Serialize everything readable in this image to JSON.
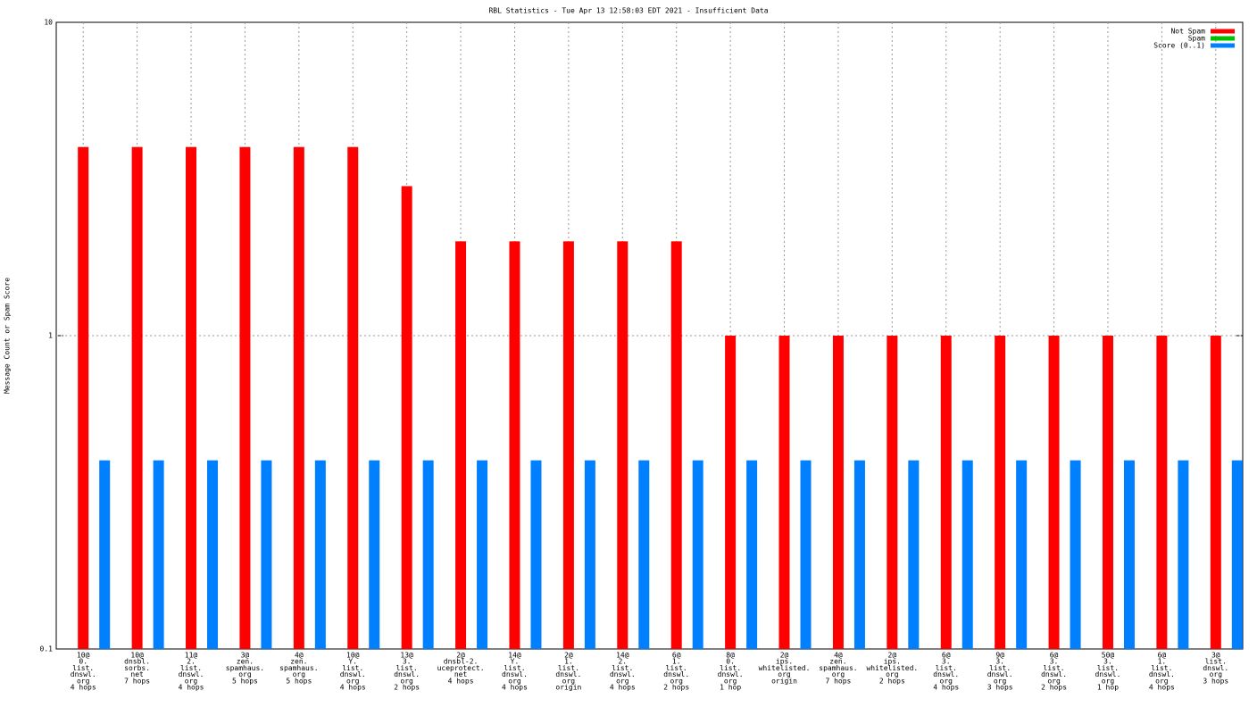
{
  "chart_data": {
    "type": "bar",
    "title": "RBL Statistics - Tue Apr 13 12:58:03 EDT 2021 - Insufficient Data",
    "y_label": "Message Count or Spam Score",
    "log_scale": true,
    "ylim": [
      0.1,
      10
    ],
    "yticks": [
      0.1,
      1,
      10
    ],
    "grid": true,
    "legend": "top-right",
    "categories": [
      [
        "10@",
        "0.",
        "list.",
        "dnswl.",
        "org",
        "4 hops"
      ],
      [
        "10@",
        "dnsbl.",
        "sorbs.",
        "net",
        "7 hops"
      ],
      [
        "11@",
        "2.",
        "list.",
        "dnswl.",
        "org",
        "4 hops"
      ],
      [
        "3@",
        "zen.",
        "spamhaus.",
        "org",
        "5 hops"
      ],
      [
        "4@",
        "zen.",
        "spamhaus.",
        "org",
        "5 hops"
      ],
      [
        "10@",
        "Y.",
        "list.",
        "dnswl.",
        "org",
        "4 hops"
      ],
      [
        "13@",
        "3.",
        "list.",
        "dnswl.",
        "org",
        "2 hops"
      ],
      [
        "2@",
        "dnsbl-2.",
        "uceprotect.",
        "net",
        "4 hops"
      ],
      [
        "14@",
        "Y.",
        "list.",
        "dnswl.",
        "org",
        "4 hops"
      ],
      [
        "2@",
        "1.",
        "list.",
        "dnswl.",
        "org",
        "origin"
      ],
      [
        "14@",
        "2.",
        "list.",
        "dnswl.",
        "org",
        "4 hops"
      ],
      [
        "6@",
        "1.",
        "list.",
        "dnswl.",
        "org",
        "2 hops"
      ],
      [
        "8@",
        "0.",
        "list.",
        "dnswl.",
        "org",
        "1 hop"
      ],
      [
        "2@",
        "ips.",
        "whitelisted.",
        "org",
        "origin"
      ],
      [
        "4@",
        "zen.",
        "spamhaus.",
        "org",
        "7 hops"
      ],
      [
        "2@",
        "ips.",
        "whitelisted.",
        "org",
        "2 hops"
      ],
      [
        "6@",
        "3.",
        "list.",
        "dnswl.",
        "org",
        "4 hops"
      ],
      [
        "9@",
        "3.",
        "list.",
        "dnswl.",
        "org",
        "3 hops"
      ],
      [
        "6@",
        "3.",
        "list.",
        "dnswl.",
        "org",
        "2 hops"
      ],
      [
        "50@",
        "3.",
        "list.",
        "dnswl.",
        "org",
        "1 hop"
      ],
      [
        "6@",
        "1.",
        "list.",
        "dnswl.",
        "org",
        "4 hops"
      ],
      [
        "3@",
        "list.",
        "dnswl.",
        "org",
        "3 hops"
      ]
    ],
    "series": [
      {
        "name": "Not Spam",
        "color": "#ff0000",
        "values": [
          4,
          4,
          4,
          4,
          4,
          4,
          3,
          2,
          2,
          2,
          2,
          2,
          1,
          1,
          1,
          1,
          1,
          1,
          1,
          1,
          1,
          1
        ]
      },
      {
        "name": "Spam",
        "color": "#00c000",
        "values": [
          0,
          0,
          0,
          0,
          0,
          0,
          0,
          0,
          0,
          0,
          0,
          0,
          0,
          0,
          0,
          0,
          0,
          0,
          0,
          0,
          0,
          0
        ]
      },
      {
        "name": "Score (0..1)",
        "color": "#0080ff",
        "values": [
          0.4,
          0.4,
          0.4,
          0.4,
          0.4,
          0.4,
          0.4,
          0.4,
          0.4,
          0.4,
          0.4,
          0.4,
          0.4,
          0.4,
          0.4,
          0.4,
          0.4,
          0.4,
          0.4,
          0.4,
          0.4,
          0.4
        ]
      }
    ]
  }
}
